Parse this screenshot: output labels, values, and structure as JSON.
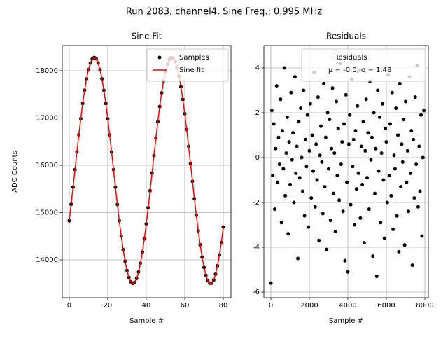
{
  "title": "Run 2083, channel4, Sine Freq.: 0.995 MHz",
  "chart_data": [
    {
      "type": "line",
      "title": "Sine Fit",
      "xlabel": "Sample #",
      "ylabel": "ADC Counts",
      "x": [
        0,
        1,
        2,
        3,
        4,
        5,
        6,
        7,
        8,
        9,
        10,
        11,
        12,
        13,
        14,
        15,
        16,
        17,
        18,
        19,
        20,
        21,
        22,
        23,
        24,
        25,
        26,
        27,
        28,
        29,
        30,
        31,
        32,
        33,
        34,
        35,
        36,
        37,
        38,
        39,
        40,
        41,
        42,
        43,
        44,
        45,
        46,
        47,
        48,
        49,
        50,
        51,
        52,
        53,
        54,
        55,
        56,
        57,
        58,
        59,
        60,
        61,
        62,
        63,
        64,
        65,
        66,
        67,
        68,
        69,
        70,
        71,
        72,
        73,
        74,
        75,
        76,
        77,
        78,
        79,
        80
      ],
      "series": [
        {
          "name": "Samples",
          "color": "#000000",
          "style": "markers",
          "values": [
            14827,
            15175,
            15538,
            15909,
            16282,
            16644,
            16987,
            17305,
            17587,
            17828,
            18022,
            18165,
            18251,
            18280,
            18251,
            18164,
            18021,
            17828,
            17587,
            17305,
            16987,
            16640,
            16280,
            15907,
            15536,
            15171,
            14827,
            14506,
            14219,
            13973,
            13775,
            13627,
            13536,
            13500,
            13524,
            13605,
            13742,
            13930,
            14167,
            14444,
            14760,
            15104,
            15462,
            15835,
            16205,
            16574,
            16920,
            17243,
            17532,
            17783,
            17984,
            18137,
            18235,
            18278,
            18263,
            18192,
            18065,
            17886,
            17661,
            17393,
            17090,
            16755,
            16399,
            16031,
            15661,
            15295,
            14944,
            14614,
            14320,
            14057,
            13839,
            13674,
            13557,
            13505,
            13507,
            13574,
            13698,
            13875,
            14102,
            14368,
            14695
          ]
        },
        {
          "name": "Sine fit",
          "color": "#ff0000",
          "style": "line",
          "values": [
            14827,
            15175,
            15538,
            15909,
            16282,
            16644,
            16987,
            17305,
            17587,
            17828,
            18022,
            18165,
            18251,
            18280,
            18251,
            18164,
            18021,
            17828,
            17587,
            17305,
            16987,
            16640,
            16280,
            15907,
            15536,
            15171,
            14827,
            14506,
            14219,
            13973,
            13775,
            13627,
            13536,
            13500,
            13524,
            13605,
            13742,
            13930,
            14167,
            14444,
            14760,
            15104,
            15462,
            15835,
            16205,
            16574,
            16920,
            17243,
            17532,
            17783,
            17984,
            18137,
            18235,
            18278,
            18263,
            18192,
            18065,
            17886,
            17661,
            17393,
            17090,
            16755,
            16399,
            16031,
            15661,
            15295,
            14944,
            14614,
            14320,
            14057,
            13839,
            13674,
            13557,
            13505,
            13507,
            13574,
            13698,
            13875,
            14102,
            14368,
            14695
          ]
        }
      ],
      "xlim": [
        -3.6,
        84
      ],
      "ylim": [
        13200,
        18533
      ],
      "xticks": [
        0,
        20,
        40,
        60,
        80
      ],
      "yticks": [
        14000,
        15000,
        16000,
        17000,
        18000
      ],
      "grid": true,
      "legend": "upper right"
    },
    {
      "type": "scatter",
      "title": "Residuals",
      "xlabel": "Sample #",
      "legend_note": "μ = -0.0, σ = 1.48",
      "x": [
        0,
        50,
        100,
        150,
        200,
        250,
        300,
        350,
        400,
        450,
        500,
        550,
        600,
        650,
        700,
        750,
        800,
        850,
        900,
        950,
        1000,
        1050,
        1100,
        1150,
        1200,
        1250,
        1300,
        1350,
        1400,
        1450,
        1500,
        1550,
        1600,
        1650,
        1700,
        1750,
        1800,
        1850,
        1900,
        1950,
        2000,
        2050,
        2100,
        2150,
        2200,
        2250,
        2300,
        2350,
        2400,
        2450,
        2500,
        2550,
        2600,
        2650,
        2700,
        2750,
        2800,
        2850,
        2900,
        2950,
        3000,
        3050,
        3100,
        3150,
        3200,
        3250,
        3300,
        3350,
        3400,
        3450,
        3500,
        3550,
        3600,
        3650,
        3700,
        3750,
        3800,
        3850,
        3900,
        3950,
        4000,
        4050,
        4100,
        4150,
        4200,
        4250,
        4300,
        4350,
        4400,
        4450,
        4500,
        4550,
        4600,
        4650,
        4700,
        4750,
        4800,
        4850,
        4900,
        4950,
        5000,
        5050,
        5100,
        5150,
        5200,
        5250,
        5300,
        5350,
        5400,
        5450,
        5500,
        5550,
        5600,
        5650,
        5700,
        5750,
        5800,
        5850,
        5900,
        5950,
        6000,
        6050,
        6100,
        6150,
        6200,
        6250,
        6300,
        6350,
        6400,
        6450,
        6500,
        6550,
        6600,
        6650,
        6700,
        6750,
        6800,
        6850,
        6900,
        6950,
        7000,
        7050,
        7100,
        7150,
        7200,
        7250,
        7300,
        7350,
        7400,
        7450,
        7500,
        7550,
        7600,
        7650,
        7700,
        7750,
        7800,
        7850,
        7900,
        7950
      ],
      "series": [
        {
          "name": "Residuals",
          "color": "#000000",
          "values": [
            -5.6,
            2.1,
            -0.8,
            1.5,
            -2.3,
            0.4,
            3.2,
            -1.1,
            0.9,
            -0.3,
            2.6,
            -2.9,
            1.2,
            -0.5,
            4.0,
            -1.7,
            0.2,
            1.8,
            -3.4,
            0.7,
            -1.2,
            2.9,
            -0.1,
            1.1,
            -2.0,
            3.6,
            -0.7,
            0.5,
            -4.5,
            1.6,
            -0.9,
            2.2,
            0.0,
            -1.5,
            3.0,
            -2.6,
            0.8,
            -0.4,
            1.9,
            -3.1,
            0.3,
            2.4,
            -1.8,
            1.0,
            -0.6,
            3.8,
            -2.2,
            0.6,
            -1.0,
            2.7,
            -3.7,
            0.1,
            1.4,
            -0.2,
            -2.5,
            3.3,
            -1.3,
            0.9,
            -4.1,
            2.0,
            -0.5,
            1.7,
            -2.8,
            0.4,
            3.1,
            -1.6,
            0.2,
            -3.3,
            2.5,
            -0.8,
            1.3,
            -1.9,
            4.2,
            -0.3,
            0.7,
            -2.4,
            1.5,
            -4.6,
            2.8,
            -1.1,
            -5.1,
            0.6,
            1.9,
            -2.1,
            3.5,
            -0.4,
            0.8,
            -3.0,
            1.2,
            -1.4,
            2.3,
            -0.7,
            3.9,
            -2.7,
            0.5,
            -1.2,
            1.6,
            -3.8,
            0.3,
            2.6,
            -0.9,
            1.1,
            -2.3,
            3.4,
            -0.1,
            0.9,
            -4.4,
            2.0,
            -1.6,
            0.4,
            -5.3,
            3.0,
            -0.6,
            1.8,
            -2.9,
            0.2,
            2.4,
            -1.0,
            -3.6,
            1.3,
            0.7,
            -2.0,
            3.7,
            -0.8,
            1.5,
            -1.7,
            2.9,
            -3.2,
            0.1,
            -0.5,
            2.2,
            -2.6,
            1.0,
            -4.2,
            3.3,
            -1.3,
            0.6,
            -0.2,
            1.7,
            -3.9,
            2.5,
            -1.1,
            0.3,
            -2.4,
            3.6,
            -0.7,
            1.2,
            -4.8,
            0.8,
            -1.8,
            2.7,
            -0.3,
            4.1,
            -2.2,
            0.5,
            -1.5,
            1.9,
            -3.5,
            0.0,
            2.1
          ]
        }
      ],
      "xlim": [
        -364,
        8182
      ],
      "ylim": [
        -6.25,
        5.0
      ],
      "xticks": [
        0,
        2000,
        4000,
        6000,
        8000
      ],
      "yticks": [
        -6,
        -4,
        -2,
        0,
        2,
        4
      ],
      "grid": true,
      "legend": "upper right"
    }
  ]
}
